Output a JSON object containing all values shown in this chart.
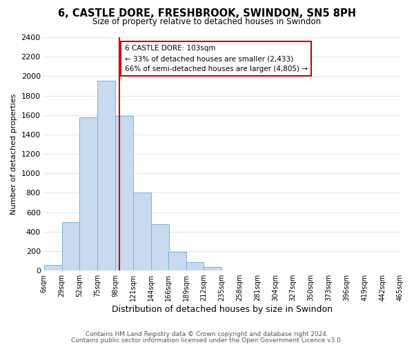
{
  "title": "6, CASTLE DORE, FRESHBROOK, SWINDON, SN5 8PH",
  "subtitle": "Size of property relative to detached houses in Swindon",
  "xlabel": "Distribution of detached houses by size in Swindon",
  "ylabel": "Number of detached properties",
  "bar_color": "#c8daf0",
  "bar_edge_color": "#7bafd4",
  "bin_labels": [
    "6sqm",
    "29sqm",
    "52sqm",
    "75sqm",
    "98sqm",
    "121sqm",
    "144sqm",
    "166sqm",
    "189sqm",
    "212sqm",
    "235sqm",
    "258sqm",
    "281sqm",
    "304sqm",
    "327sqm",
    "350sqm",
    "373sqm",
    "396sqm",
    "419sqm",
    "442sqm",
    "465sqm"
  ],
  "bin_edges": [
    6,
    29,
    52,
    75,
    98,
    121,
    144,
    166,
    189,
    212,
    235,
    258,
    281,
    304,
    327,
    350,
    373,
    396,
    419,
    442,
    465
  ],
  "bar_heights": [
    55,
    500,
    1575,
    1950,
    1590,
    800,
    480,
    190,
    90,
    35,
    0,
    0,
    0,
    0,
    0,
    0,
    0,
    0,
    0,
    0
  ],
  "ylim": [
    0,
    2400
  ],
  "yticks": [
    0,
    200,
    400,
    600,
    800,
    1000,
    1200,
    1400,
    1600,
    1800,
    2000,
    2200,
    2400
  ],
  "vline_x": 103,
  "vline_color": "#cc0000",
  "annotation_line1": "6 CASTLE DORE: 103sqm",
  "annotation_line2": "← 33% of detached houses are smaller (2,433)",
  "annotation_line3": "66% of semi-detached houses are larger (4,805) →",
  "annotation_box_color": "#ffffff",
  "annotation_box_edge": "#cc0000",
  "footer1": "Contains HM Land Registry data © Crown copyright and database right 2024.",
  "footer2": "Contains public sector information licensed under the Open Government Licence v3.0.",
  "bg_color": "#ffffff",
  "grid_color": "#dce8f5"
}
